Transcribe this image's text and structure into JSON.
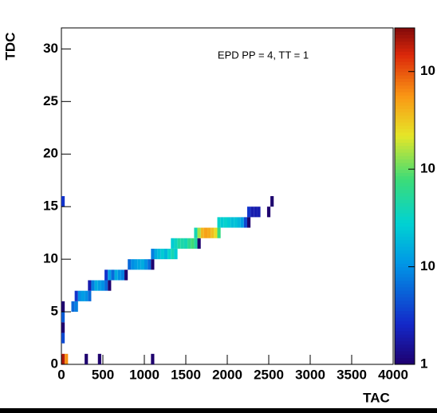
{
  "chart_data": {
    "type": "heatmap",
    "annotation": "EPD PP = 4, TT = 1",
    "xlabel": "TAC",
    "ylabel": "TDC",
    "xlim": [
      0,
      4000
    ],
    "xticks": [
      0,
      500,
      1000,
      1500,
      2000,
      2500,
      3000,
      3500,
      4000
    ],
    "ylim": [
      0,
      32
    ],
    "yticks": [
      0,
      5,
      10,
      15,
      20,
      25,
      30
    ],
    "zlim": [
      1,
      2800
    ],
    "zlog": true,
    "zticks": [
      1,
      10,
      {
        "value": 100,
        "label": "10"
      },
      {
        "value": 1000,
        "label": "10"
      }
    ],
    "cells": [
      {
        "x": [
          0,
          40
        ],
        "y": [
          0,
          1
        ],
        "value": 2000
      },
      {
        "x": [
          40,
          80
        ],
        "y": [
          0,
          1
        ],
        "value": 600
      },
      {
        "x": [
          280,
          320
        ],
        "y": [
          0,
          1
        ],
        "value": 1
      },
      {
        "x": [
          440,
          480
        ],
        "y": [
          0,
          1
        ],
        "value": 1
      },
      {
        "x": [
          1080,
          1120
        ],
        "y": [
          0,
          1
        ],
        "value": 1
      },
      {
        "x": [
          0,
          40
        ],
        "y": [
          2,
          3
        ],
        "value": 4
      },
      {
        "x": [
          0,
          40
        ],
        "y": [
          3,
          4
        ],
        "value": 1
      },
      {
        "x": [
          0,
          40
        ],
        "y": [
          4,
          5
        ],
        "value": 5
      },
      {
        "x": [
          0,
          40
        ],
        "y": [
          5,
          6
        ],
        "value": 1
      },
      {
        "x": [
          120,
          160
        ],
        "y": [
          5,
          6
        ],
        "value": 6
      },
      {
        "x": [
          160,
          200
        ],
        "y": [
          5,
          6
        ],
        "value": 8
      },
      {
        "x": [
          160,
          200
        ],
        "y": [
          6,
          7
        ],
        "value": 3
      },
      {
        "x": [
          200,
          240
        ],
        "y": [
          6,
          7
        ],
        "value": 10
      },
      {
        "x": [
          240,
          280
        ],
        "y": [
          6,
          7
        ],
        "value": 12
      },
      {
        "x": [
          280,
          320
        ],
        "y": [
          6,
          7
        ],
        "value": 10
      },
      {
        "x": [
          320,
          360
        ],
        "y": [
          6,
          7
        ],
        "value": 6
      },
      {
        "x": [
          320,
          360
        ],
        "y": [
          7,
          8
        ],
        "value": 2
      },
      {
        "x": [
          360,
          400
        ],
        "y": [
          7,
          8
        ],
        "value": 8
      },
      {
        "x": [
          400,
          440
        ],
        "y": [
          7,
          8
        ],
        "value": 15
      },
      {
        "x": [
          440,
          480
        ],
        "y": [
          7,
          8
        ],
        "value": 12
      },
      {
        "x": [
          480,
          520
        ],
        "y": [
          7,
          8
        ],
        "value": 10
      },
      {
        "x": [
          520,
          560
        ],
        "y": [
          7,
          8
        ],
        "value": 6
      },
      {
        "x": [
          560,
          600
        ],
        "y": [
          7,
          8
        ],
        "value": 1
      },
      {
        "x": [
          520,
          560
        ],
        "y": [
          8,
          9
        ],
        "value": 3
      },
      {
        "x": [
          560,
          600
        ],
        "y": [
          8,
          9
        ],
        "value": 12
      },
      {
        "x": [
          600,
          640
        ],
        "y": [
          8,
          9
        ],
        "value": 6
      },
      {
        "x": [
          640,
          680
        ],
        "y": [
          8,
          9
        ],
        "value": 15
      },
      {
        "x": [
          680,
          720
        ],
        "y": [
          8,
          9
        ],
        "value": 10
      },
      {
        "x": [
          720,
          760
        ],
        "y": [
          8,
          9
        ],
        "value": 8
      },
      {
        "x": [
          760,
          800
        ],
        "y": [
          8,
          9
        ],
        "value": 1
      },
      {
        "x": [
          800,
          840
        ],
        "y": [
          9,
          10
        ],
        "value": 6
      },
      {
        "x": [
          840,
          880
        ],
        "y": [
          9,
          10
        ],
        "value": 10
      },
      {
        "x": [
          880,
          920
        ],
        "y": [
          9,
          10
        ],
        "value": 12
      },
      {
        "x": [
          920,
          960
        ],
        "y": [
          9,
          10
        ],
        "value": 14
      },
      {
        "x": [
          960,
          1000
        ],
        "y": [
          9,
          10
        ],
        "value": 15
      },
      {
        "x": [
          1000,
          1040
        ],
        "y": [
          9,
          10
        ],
        "value": 10
      },
      {
        "x": [
          1040,
          1080
        ],
        "y": [
          9,
          10
        ],
        "value": 6
      },
      {
        "x": [
          1080,
          1120
        ],
        "y": [
          9,
          10
        ],
        "value": 1
      },
      {
        "x": [
          1080,
          1120
        ],
        "y": [
          10,
          11
        ],
        "value": 8
      },
      {
        "x": [
          1120,
          1160
        ],
        "y": [
          10,
          11
        ],
        "value": 15
      },
      {
        "x": [
          1160,
          1200
        ],
        "y": [
          10,
          11
        ],
        "value": 20
      },
      {
        "x": [
          1200,
          1240
        ],
        "y": [
          10,
          11
        ],
        "value": 25
      },
      {
        "x": [
          1240,
          1280
        ],
        "y": [
          10,
          11
        ],
        "value": 18
      },
      {
        "x": [
          1280,
          1320
        ],
        "y": [
          10,
          11
        ],
        "value": 30
      },
      {
        "x": [
          1320,
          1360
        ],
        "y": [
          10,
          11
        ],
        "value": 40
      },
      {
        "x": [
          1360,
          1400
        ],
        "y": [
          10,
          11
        ],
        "value": 25
      },
      {
        "x": [
          1320,
          1360
        ],
        "y": [
          11,
          12
        ],
        "value": 25
      },
      {
        "x": [
          1360,
          1400
        ],
        "y": [
          11,
          12
        ],
        "value": 35
      },
      {
        "x": [
          1400,
          1440
        ],
        "y": [
          11,
          12
        ],
        "value": 50
      },
      {
        "x": [
          1440,
          1480
        ],
        "y": [
          11,
          12
        ],
        "value": 45
      },
      {
        "x": [
          1480,
          1520
        ],
        "y": [
          11,
          12
        ],
        "value": 40
      },
      {
        "x": [
          1520,
          1560
        ],
        "y": [
          11,
          12
        ],
        "value": 60
      },
      {
        "x": [
          1560,
          1600
        ],
        "y": [
          11,
          12
        ],
        "value": 80
      },
      {
        "x": [
          1600,
          1640
        ],
        "y": [
          11,
          12
        ],
        "value": 50
      },
      {
        "x": [
          1640,
          1680
        ],
        "y": [
          11,
          12
        ],
        "value": 1
      },
      {
        "x": [
          1600,
          1640
        ],
        "y": [
          12,
          13
        ],
        "value": 40
      },
      {
        "x": [
          1640,
          1680
        ],
        "y": [
          12,
          13
        ],
        "value": 150
      },
      {
        "x": [
          1680,
          1720
        ],
        "y": [
          12,
          13
        ],
        "value": 400
      },
      {
        "x": [
          1720,
          1760
        ],
        "y": [
          12,
          13
        ],
        "value": 500
      },
      {
        "x": [
          1760,
          1800
        ],
        "y": [
          12,
          13
        ],
        "value": 450
      },
      {
        "x": [
          1800,
          1840
        ],
        "y": [
          12,
          13
        ],
        "value": 350
      },
      {
        "x": [
          1840,
          1880
        ],
        "y": [
          12,
          13
        ],
        "value": 250
      },
      {
        "x": [
          1880,
          1920
        ],
        "y": [
          12,
          13
        ],
        "value": 70
      },
      {
        "x": [
          1880,
          1920
        ],
        "y": [
          13,
          14
        ],
        "value": 30
      },
      {
        "x": [
          1920,
          1960
        ],
        "y": [
          13,
          14
        ],
        "value": 25
      },
      {
        "x": [
          1960,
          2000
        ],
        "y": [
          13,
          14
        ],
        "value": 30
      },
      {
        "x": [
          2000,
          2040
        ],
        "y": [
          13,
          14
        ],
        "value": 25
      },
      {
        "x": [
          2040,
          2080
        ],
        "y": [
          13,
          14
        ],
        "value": 20
      },
      {
        "x": [
          2080,
          2120
        ],
        "y": [
          13,
          14
        ],
        "value": 22
      },
      {
        "x": [
          2120,
          2160
        ],
        "y": [
          13,
          14
        ],
        "value": 18
      },
      {
        "x": [
          2160,
          2200
        ],
        "y": [
          13,
          14
        ],
        "value": 12
      },
      {
        "x": [
          2200,
          2240
        ],
        "y": [
          13,
          14
        ],
        "value": 4
      },
      {
        "x": [
          2240,
          2280
        ],
        "y": [
          13,
          14
        ],
        "value": 1
      },
      {
        "x": [
          2240,
          2280
        ],
        "y": [
          14,
          15
        ],
        "value": 3
      },
      {
        "x": [
          2280,
          2320
        ],
        "y": [
          14,
          15
        ],
        "value": 2
      },
      {
        "x": [
          2320,
          2360
        ],
        "y": [
          14,
          15
        ],
        "value": 2
      },
      {
        "x": [
          2360,
          2400
        ],
        "y": [
          14,
          15
        ],
        "value": 2
      },
      {
        "x": [
          2480,
          2520
        ],
        "y": [
          14,
          15
        ],
        "value": 1
      },
      {
        "x": [
          2520,
          2560
        ],
        "y": [
          15,
          16
        ],
        "value": 1
      },
      {
        "x": [
          0,
          40
        ],
        "y": [
          15,
          16
        ],
        "value": 3
      }
    ]
  }
}
